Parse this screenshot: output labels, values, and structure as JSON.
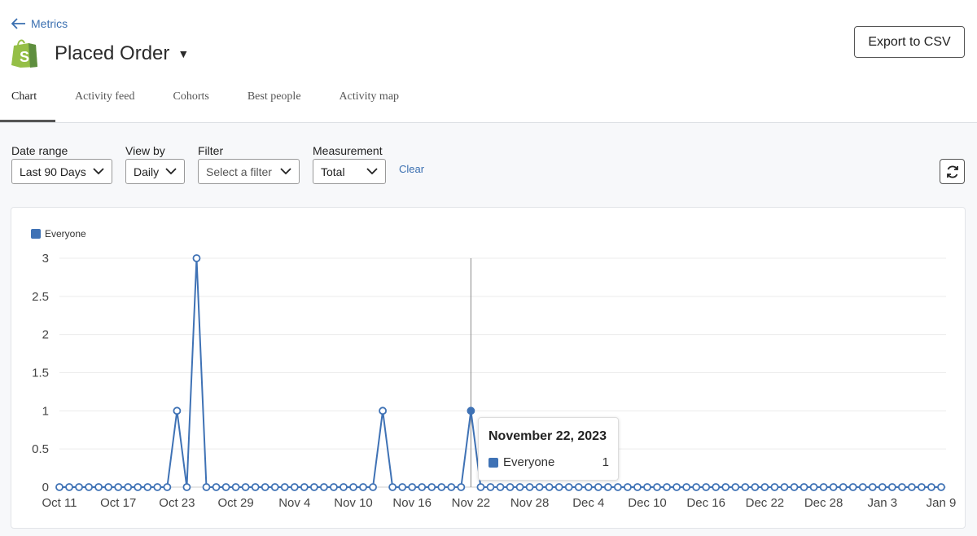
{
  "header": {
    "back_label": "Metrics",
    "title": "Placed Order",
    "export_label": "Export to CSV",
    "logo": "shopify-bag-icon"
  },
  "tabs": [
    {
      "label": "Chart",
      "active": true
    },
    {
      "label": "Activity feed"
    },
    {
      "label": "Cohorts"
    },
    {
      "label": "Best people"
    },
    {
      "label": "Activity map"
    }
  ],
  "controls": {
    "date_range": {
      "label": "Date range",
      "value": "Last 90 Days"
    },
    "view_by": {
      "label": "View by",
      "value": "Daily"
    },
    "filter": {
      "label": "Filter",
      "placeholder": "Select a filter"
    },
    "measurement": {
      "label": "Measurement",
      "value": "Total"
    },
    "clear_label": "Clear"
  },
  "tooltip": {
    "date": "November 22, 2023",
    "series": "Everyone",
    "value": "1"
  },
  "chart_data": {
    "type": "line",
    "legend": "top-left",
    "grid": true,
    "series": [
      {
        "name": "Everyone",
        "color": "#3f72b5",
        "values": [
          0,
          0,
          0,
          0,
          0,
          0,
          0,
          0,
          0,
          0,
          0,
          0,
          1,
          0,
          3,
          0,
          0,
          0,
          0,
          0,
          0,
          0,
          0,
          0,
          0,
          0,
          0,
          0,
          0,
          0,
          0,
          0,
          0,
          1,
          0,
          0,
          0,
          0,
          0,
          0,
          0,
          0,
          1,
          0,
          0,
          0,
          0,
          0,
          0,
          0,
          0,
          0,
          0,
          0,
          0,
          0,
          0,
          0,
          0,
          0,
          0,
          0,
          0,
          0,
          0,
          0,
          0,
          0,
          0,
          0,
          0,
          0,
          0,
          0,
          0,
          0,
          0,
          0,
          0,
          0,
          0,
          0,
          0,
          0,
          0,
          0,
          0,
          0,
          0,
          0,
          0
        ]
      }
    ],
    "x": [
      "Oct 11",
      "Oct 12",
      "Oct 13",
      "Oct 14",
      "Oct 15",
      "Oct 16",
      "Oct 17",
      "Oct 18",
      "Oct 19",
      "Oct 20",
      "Oct 21",
      "Oct 22",
      "Oct 23",
      "Oct 24",
      "Oct 25",
      "Oct 26",
      "Oct 27",
      "Oct 28",
      "Oct 29",
      "Oct 30",
      "Oct 31",
      "Nov 1",
      "Nov 2",
      "Nov 3",
      "Nov 4",
      "Nov 5",
      "Nov 6",
      "Nov 7",
      "Nov 8",
      "Nov 9",
      "Nov 10",
      "Nov 11",
      "Nov 12",
      "Nov 13",
      "Nov 14",
      "Nov 15",
      "Nov 16",
      "Nov 17",
      "Nov 18",
      "Nov 19",
      "Nov 20",
      "Nov 21",
      "Nov 22",
      "Nov 23",
      "Nov 24",
      "Nov 25",
      "Nov 26",
      "Nov 27",
      "Nov 28",
      "Nov 29",
      "Nov 30",
      "Dec 1",
      "Dec 2",
      "Dec 3",
      "Dec 4",
      "Dec 5",
      "Dec 6",
      "Dec 7",
      "Dec 8",
      "Dec 9",
      "Dec 10",
      "Dec 11",
      "Dec 12",
      "Dec 13",
      "Dec 14",
      "Dec 15",
      "Dec 16",
      "Dec 17",
      "Dec 18",
      "Dec 19",
      "Dec 20",
      "Dec 21",
      "Dec 22",
      "Dec 23",
      "Dec 24",
      "Dec 25",
      "Dec 26",
      "Dec 27",
      "Dec 28",
      "Dec 29",
      "Dec 30",
      "Dec 31",
      "Jan 1",
      "Jan 2",
      "Jan 3",
      "Jan 4",
      "Jan 5",
      "Jan 6",
      "Jan 7",
      "Jan 8",
      "Jan 9"
    ],
    "x_ticks": [
      "Oct 11",
      "Oct 17",
      "Oct 23",
      "Oct 29",
      "Nov 4",
      "Nov 10",
      "Nov 16",
      "Nov 22",
      "Nov 28",
      "Dec 4",
      "Dec 10",
      "Dec 16",
      "Dec 22",
      "Dec 28",
      "Jan 3",
      "Jan 9"
    ],
    "y_ticks": [
      "0",
      "0.5",
      "1",
      "1.5",
      "2",
      "2.5",
      "3"
    ],
    "ylim": [
      0,
      3
    ],
    "highlighted": "Nov 22"
  }
}
